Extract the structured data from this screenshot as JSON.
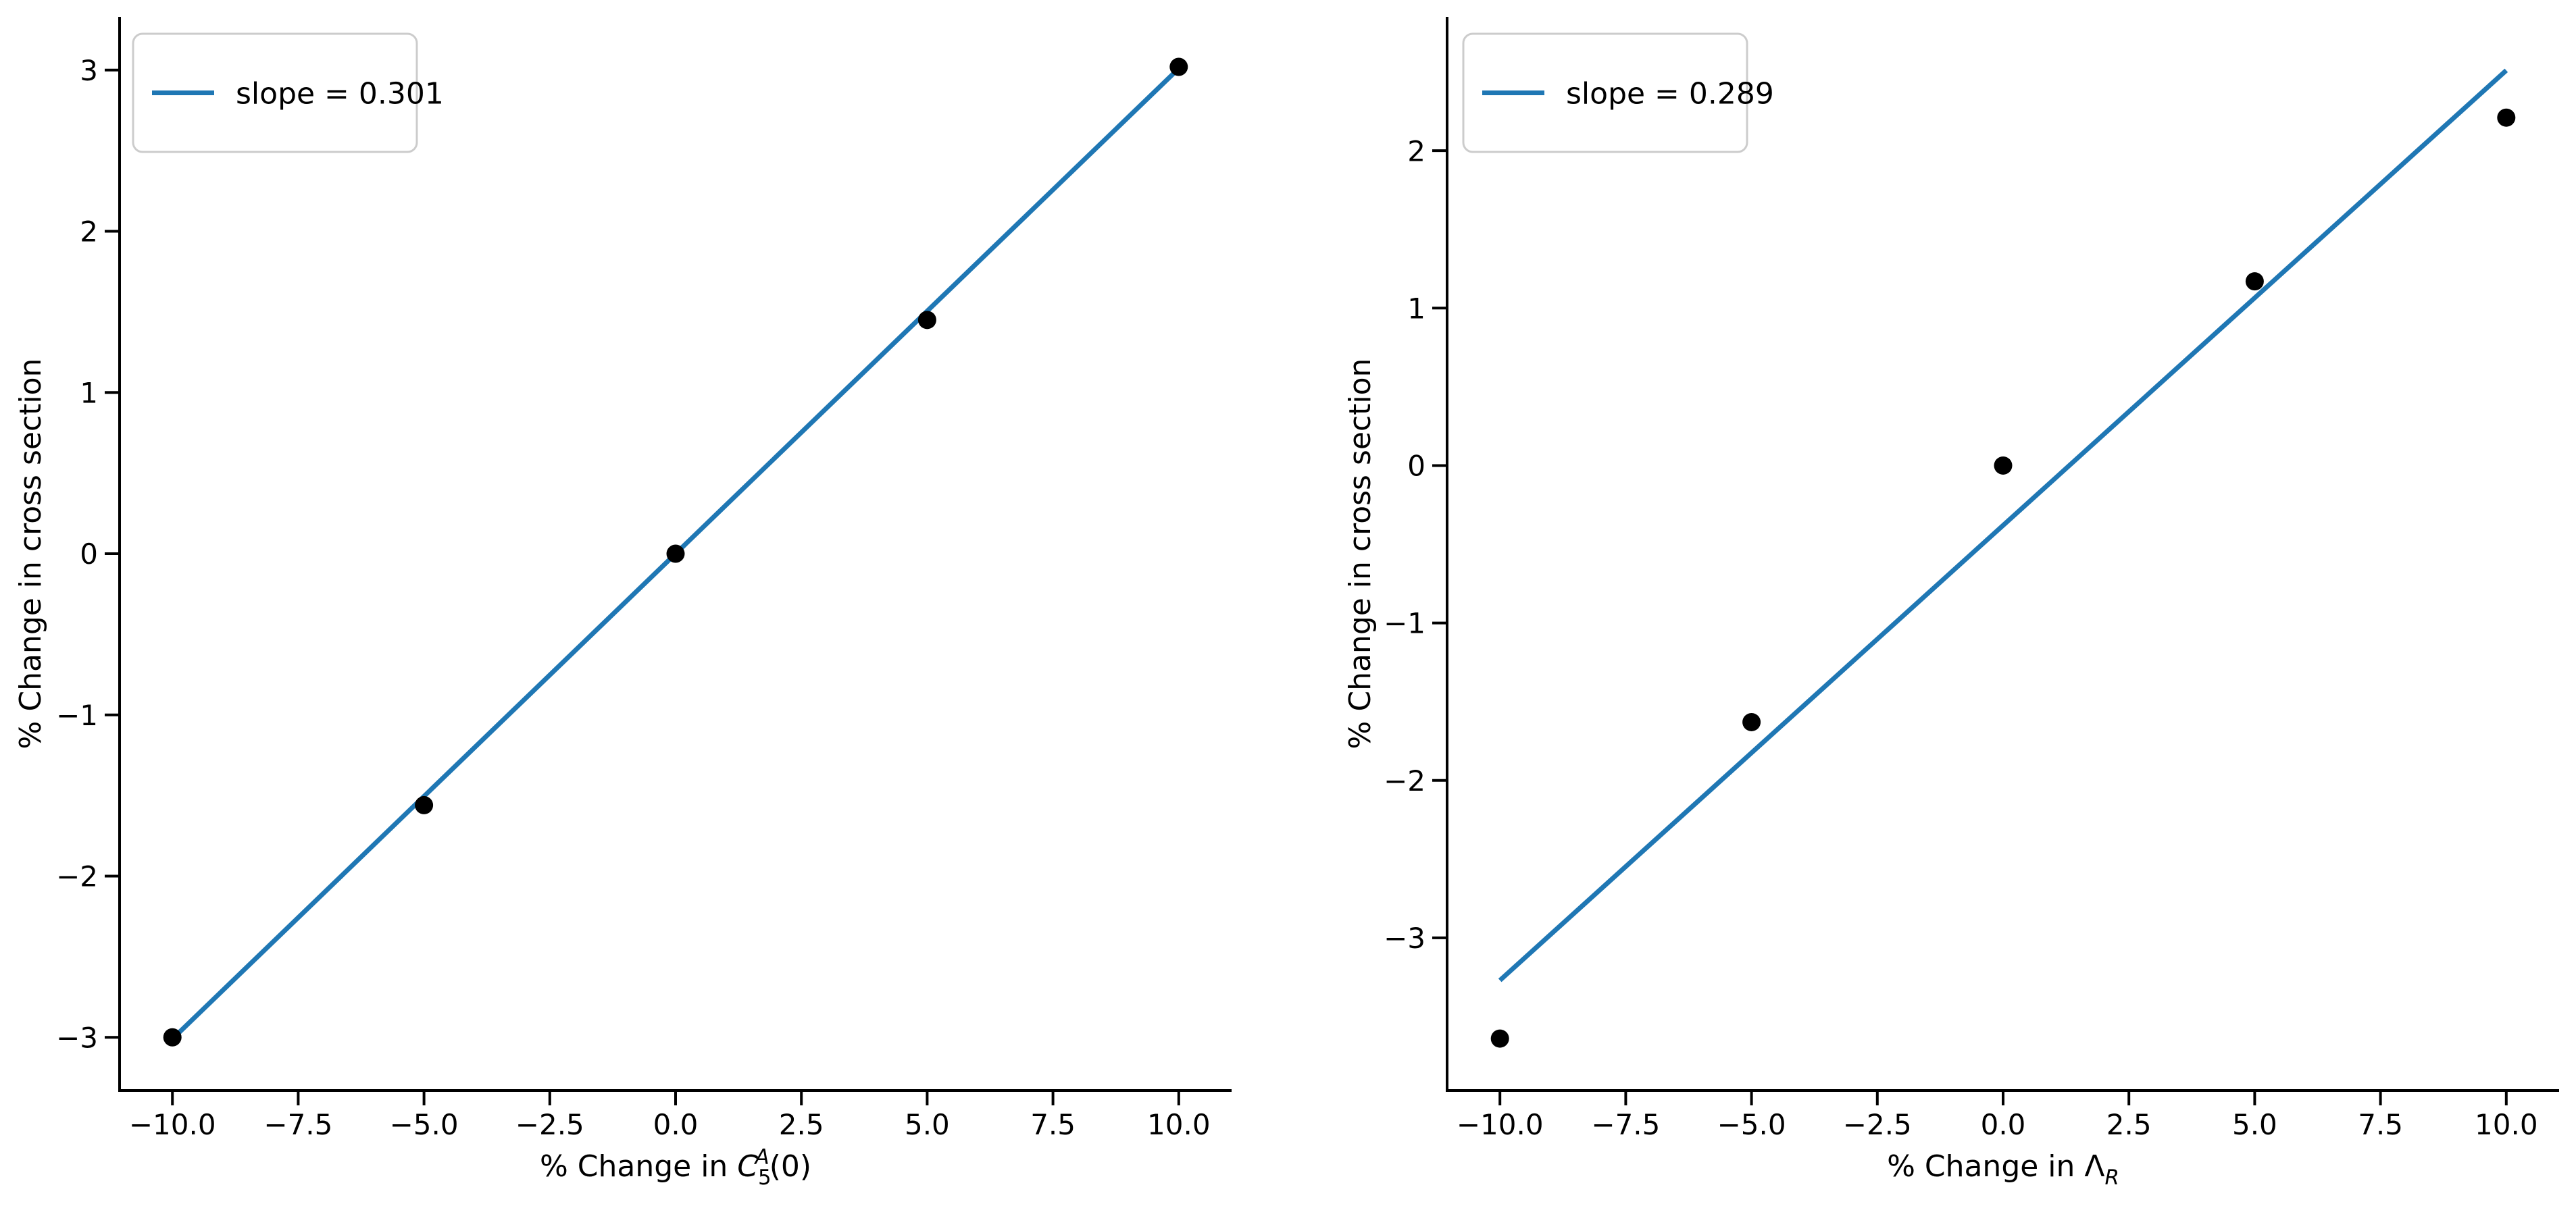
{
  "figure": {
    "background": "#ffffff",
    "text_color": "#000000",
    "spine_color": "#000000",
    "legend_border_color": "#cccccc",
    "legend_fill": "#ffffff"
  },
  "chart_data": [
    {
      "type": "scatter",
      "name": "sensitivity-c5a",
      "title": "",
      "ylabel": "% Change in cross section",
      "xlabel_parts": [
        {
          "t": "% Change in "
        },
        {
          "t": "C",
          "italic": true
        },
        {
          "t": "5",
          "script": "sub"
        },
        {
          "t": "A",
          "script": "sup",
          "italic": true,
          "stacked": true
        },
        {
          "t": "(0)"
        }
      ],
      "legend": {
        "label": "slope = 0.301",
        "position": "upper-left"
      },
      "series": [
        {
          "name": "fit-line",
          "kind": "line",
          "color": "#1f77b4",
          "slope": 0.301,
          "intercept": 0.0,
          "x": [
            -10,
            10
          ],
          "y": [
            -3.01,
            3.01
          ]
        },
        {
          "name": "data-points",
          "kind": "scatter",
          "color": "#000000",
          "x": [
            -10,
            -5,
            0,
            5,
            10
          ],
          "y": [
            -3.0,
            -1.56,
            0.0,
            1.45,
            3.02
          ]
        }
      ],
      "xticks": {
        "values": [
          -10,
          -7.5,
          -5,
          -2.5,
          0,
          2.5,
          5,
          7.5,
          10
        ],
        "labels": [
          "−10.0",
          "−7.5",
          "−5.0",
          "−2.5",
          "0.0",
          "2.5",
          "5.0",
          "7.5",
          "10.0"
        ]
      },
      "yticks": {
        "values": [
          -3,
          -2,
          -1,
          0,
          1,
          2,
          3
        ],
        "labels": [
          "−3",
          "−2",
          "−1",
          "0",
          "1",
          "2",
          "3"
        ]
      },
      "xlim": [
        -11.05,
        11.05
      ],
      "ylim": [
        -3.33,
        3.33
      ],
      "grid": false
    },
    {
      "type": "scatter",
      "name": "sensitivity-lambda-r",
      "title": "",
      "ylabel": "% Change in cross section",
      "xlabel_parts": [
        {
          "t": "% Change in "
        },
        {
          "t": "Λ"
        },
        {
          "t": "R",
          "script": "sub",
          "italic": true
        }
      ],
      "legend": {
        "label": "slope = 0.289",
        "position": "upper-left"
      },
      "series": [
        {
          "name": "fit-line",
          "kind": "line",
          "color": "#1f77b4",
          "slope": 0.289,
          "intercept": -0.378,
          "x": [
            -10,
            10
          ],
          "y": [
            -3.27,
            2.51
          ]
        },
        {
          "name": "data-points",
          "kind": "scatter",
          "color": "#000000",
          "x": [
            -10,
            -5,
            0,
            5,
            10
          ],
          "y": [
            -3.64,
            -1.63,
            0.0,
            1.17,
            2.21
          ]
        }
      ],
      "xticks": {
        "values": [
          -10,
          -7.5,
          -5,
          -2.5,
          0,
          2.5,
          5,
          7.5,
          10
        ],
        "labels": [
          "−10.0",
          "−7.5",
          "−5.0",
          "−2.5",
          "0.0",
          "2.5",
          "5.0",
          "7.5",
          "10.0"
        ]
      },
      "yticks": {
        "values": [
          -3,
          -2,
          -1,
          0,
          1,
          2
        ],
        "labels": [
          "−3",
          "−2",
          "−1",
          "0",
          "1",
          "2"
        ]
      },
      "xlim": [
        -11.05,
        11.05
      ],
      "ylim": [
        -3.97,
        2.85
      ],
      "grid": false
    }
  ]
}
